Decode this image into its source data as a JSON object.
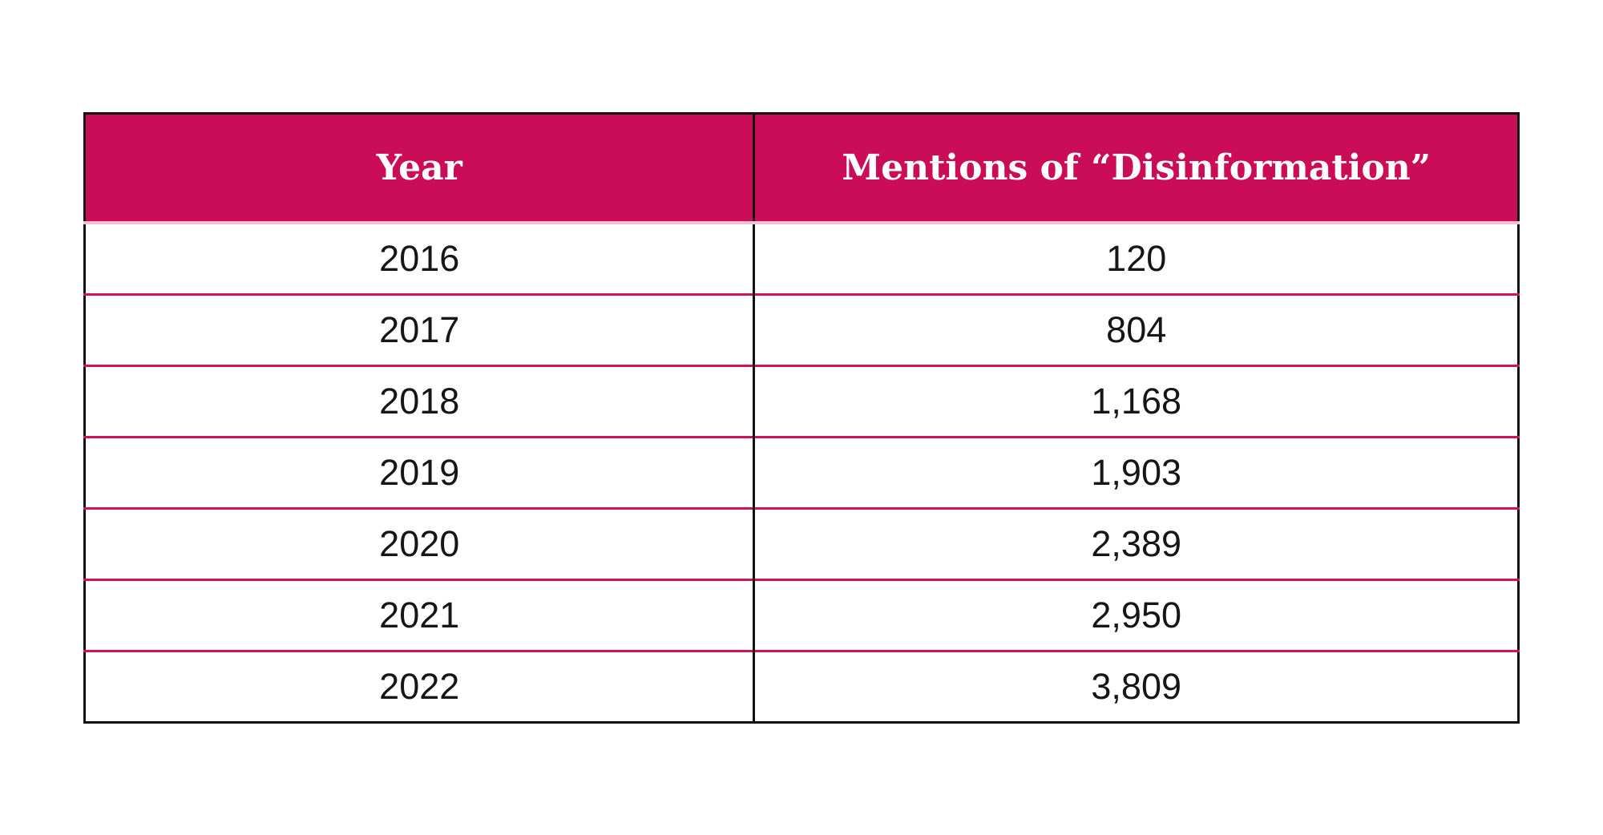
{
  "table": {
    "title_semantic": "Mentions of Disinformation by Year",
    "header": {
      "col1": "Year",
      "col2": "Mentions of “Disinformation”"
    },
    "rows": [
      {
        "year": "2016",
        "mentions": "120"
      },
      {
        "year": "2017",
        "mentions": "804"
      },
      {
        "year": "2018",
        "mentions": "1,168"
      },
      {
        "year": "2019",
        "mentions": "1,903"
      },
      {
        "year": "2020",
        "mentions": "2,389"
      },
      {
        "year": "2021",
        "mentions": "2,950"
      },
      {
        "year": "2022",
        "mentions": "3,809"
      }
    ]
  },
  "colors": {
    "header_background": "#CB0D58",
    "header_text": "#FFFFFF",
    "row_divider": "#D4105C",
    "light_divider_under_header": "#EFC2D2",
    "outer_border": "#121212",
    "body_text": "#161616",
    "page_background": "#FFFFFF"
  },
  "chart_data": {
    "type": "table",
    "title": "Mentions of “Disinformation”",
    "columns": [
      "Year",
      "Mentions of “Disinformation”"
    ],
    "categories": [
      "2016",
      "2017",
      "2018",
      "2019",
      "2020",
      "2021",
      "2022"
    ],
    "values": [
      120,
      804,
      1168,
      1903,
      2389,
      2950,
      3809
    ],
    "layout": "two-column centered table, header row highlighted in crimson pink"
  }
}
